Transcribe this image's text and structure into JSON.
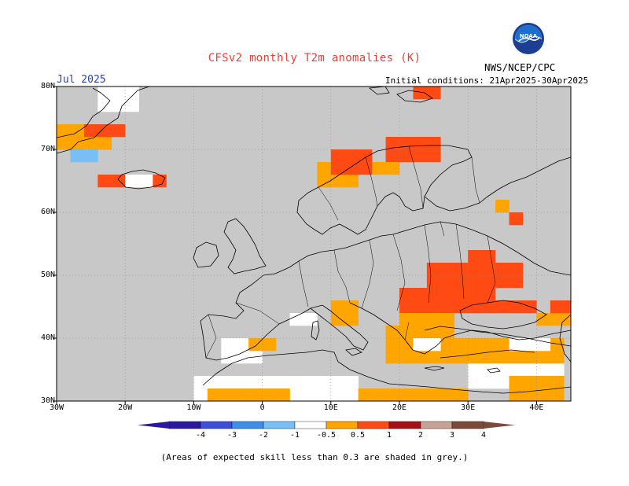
{
  "header": {
    "title": "CFSv2 monthly T2m anomalies (K)",
    "month": "Jul 2025",
    "initial_conditions": "Initial conditions: 21Apr2025-30Apr2025",
    "agency": "NWS/NCEP/CPC",
    "logo_text": "NOAA"
  },
  "axes": {
    "x_ticks": [
      "30W",
      "20W",
      "10W",
      "0",
      "10E",
      "20E",
      "30E",
      "40E"
    ],
    "y_ticks": [
      "80N",
      "70N",
      "60N",
      "50N",
      "40N",
      "30N"
    ]
  },
  "colorbar": {
    "labels": [
      "-4",
      "-3",
      "-2",
      "-1",
      "-0.5",
      "0.5",
      "1",
      "2",
      "3",
      "4"
    ],
    "colors": [
      "#2a1a9e",
      "#3c4fd8",
      "#3f8ee8",
      "#78bff5",
      "#ffffff",
      "#ffa500",
      "#ff4a14",
      "#a50f15",
      "#c8a297",
      "#7a4a3a"
    ],
    "low_end_color": "#2a1a9e",
    "high_end_color": "#7a4a3a"
  },
  "map": {
    "region": "Europe",
    "lon_range": [
      -30,
      45
    ],
    "lat_range": [
      30,
      80
    ],
    "no_skill_color": "#c8c8c8",
    "legend_colors": {
      "weak_warm": "#ffa500",
      "moderate_warm": "#ff4a14",
      "neutral": "#ffffff",
      "weak_cool": "#78bff5"
    }
  },
  "footer": {
    "note": "(Areas of expected skill less than 0.3 are shaded in grey.)"
  }
}
